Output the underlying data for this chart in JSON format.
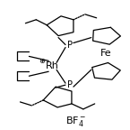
{
  "bg_color": "#ffffff",
  "line_color": "#000000",
  "lw": 0.9,
  "figsize": [
    1.45,
    1.44
  ],
  "dpi": 100,
  "label_Rh": "Rh",
  "label_Fe": "Fe",
  "label_plus": "⊕",
  "label_BF4": "BF$_4^-$"
}
